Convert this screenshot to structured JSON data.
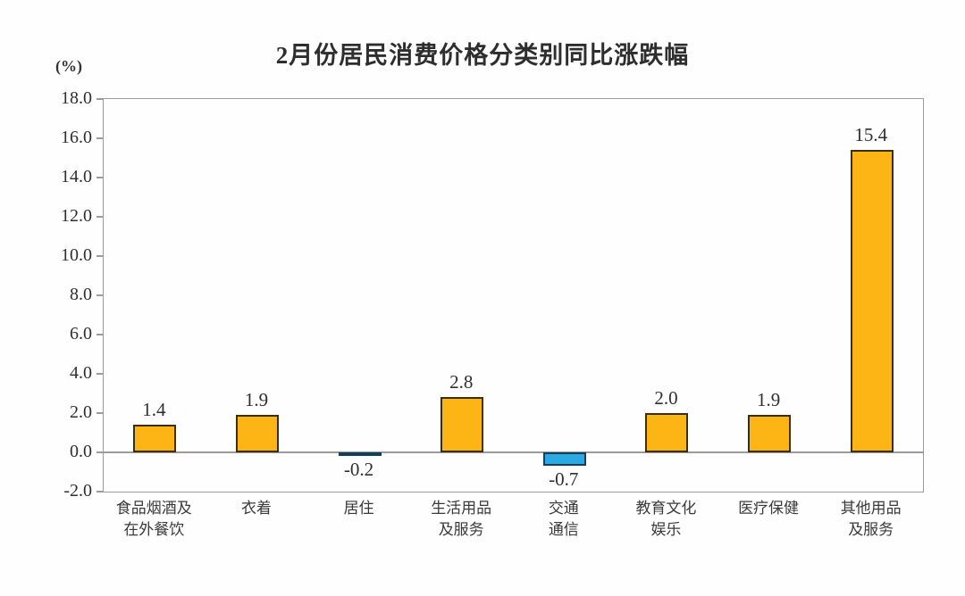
{
  "title": "2月份居民消费价格分类别同比涨跌幅",
  "unit_label": "(%)",
  "colors": {
    "positive_bar": "#FDB415",
    "positive_bar_border": "#3A2E0C",
    "negative_bar": "#2BAAE2",
    "negative_bar_border": "#143F5C",
    "axis": "#9B9B9B",
    "text": "#2F2F2F"
  },
  "chart_data": {
    "type": "bar",
    "title": "2月份居民消费价格分类别同比涨跌幅",
    "ylabel": "(%)",
    "xlabel": "",
    "ylim": [
      -2.0,
      18.0
    ],
    "ytick_step": 2.0,
    "ytick_labels": [
      "18.0",
      "16.0",
      "14.0",
      "12.0",
      "10.0",
      "8.0",
      "6.0",
      "4.0",
      "2.0",
      "0.0",
      "-2.0"
    ],
    "grid": false,
    "legend": "none",
    "categories": [
      "食品烟酒及\n在外餐饮",
      "衣着",
      "居住",
      "生活用品\n及服务",
      "交通\n通信",
      "教育文化\n娱乐",
      "医疗保健",
      "其他用品\n及服务"
    ],
    "values": [
      1.4,
      1.9,
      -0.2,
      2.8,
      -0.7,
      2.0,
      1.9,
      15.4
    ],
    "value_labels": [
      "1.4",
      "1.9",
      "-0.2",
      "2.8",
      "-0.7",
      "2.0",
      "1.9",
      "15.4"
    ]
  }
}
